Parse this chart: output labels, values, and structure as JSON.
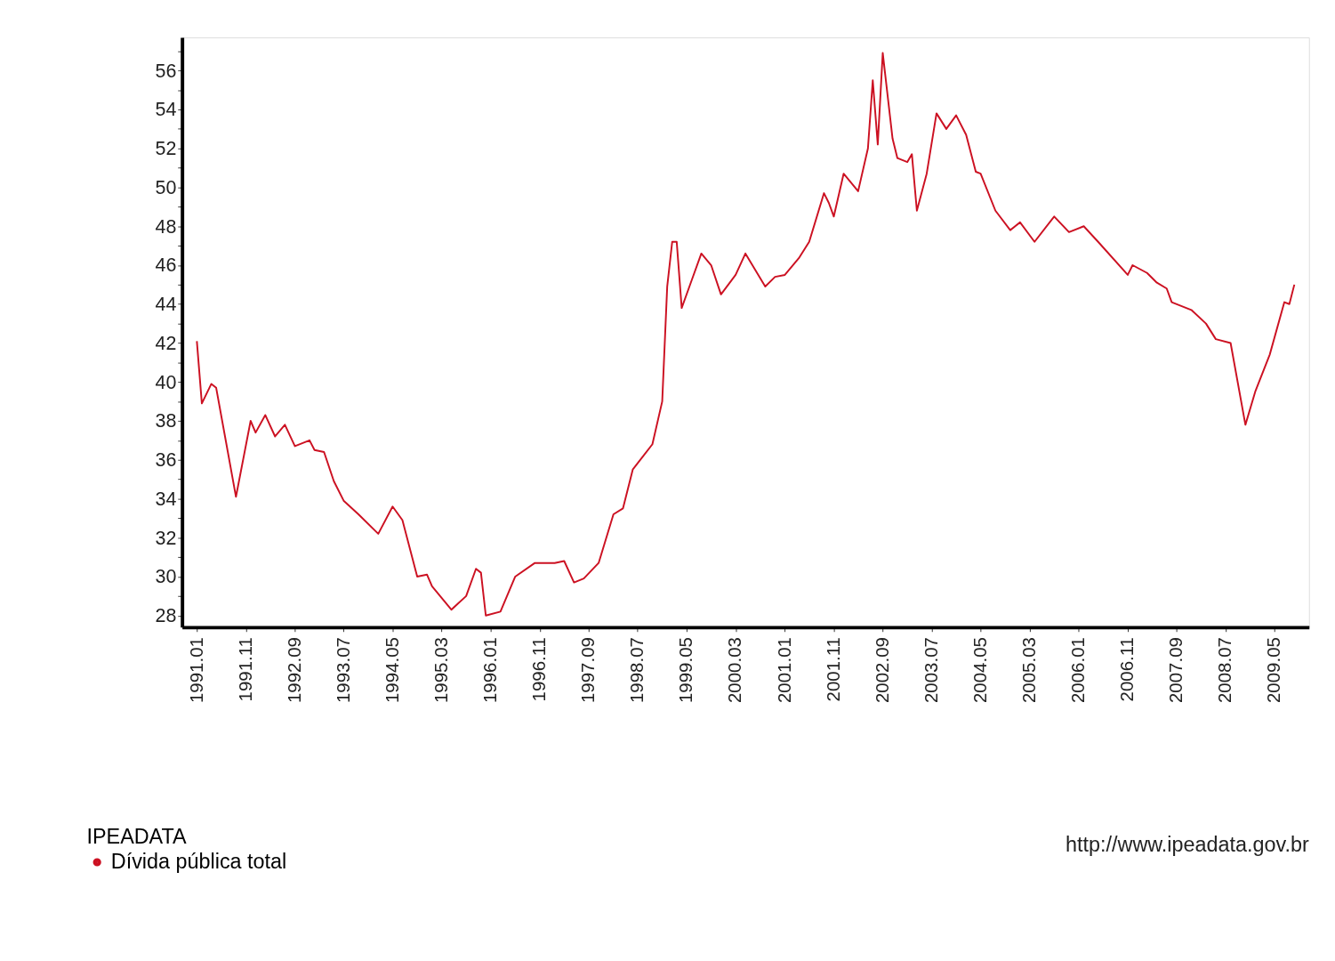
{
  "chart_data": {
    "type": "line",
    "legend_title": "IPEADATA",
    "legend": "bottom left",
    "grid": false,
    "marker": "none",
    "line_style": "solid",
    "annotations": [
      "http://www.ipeadata.gov.br"
    ],
    "x": [
      "1991-01",
      "1991-02",
      "1991-04",
      "1991-05",
      "1991-09",
      "1991-12",
      "1992-01",
      "1992-03",
      "1992-05",
      "1992-07",
      "1992-09",
      "1992-12",
      "1993-01",
      "1993-03",
      "1993-05",
      "1993-07",
      "1993-10",
      "1994-02",
      "1994-05",
      "1994-07",
      "1994-10",
      "1994-12",
      "1995-01",
      "1995-05",
      "1995-08",
      "1995-10",
      "1995-11",
      "1995-12",
      "1996-03",
      "1996-06",
      "1996-10",
      "1997-02",
      "1997-04",
      "1997-06",
      "1997-08",
      "1997-11",
      "1998-02",
      "1998-04",
      "1998-06",
      "1998-10",
      "1998-12",
      "1999-01",
      "1999-02",
      "1999-03",
      "1999-04",
      "1999-06",
      "1999-08",
      "1999-10",
      "1999-12",
      "2000-03",
      "2000-05",
      "2000-09",
      "2000-11",
      "2001-01",
      "2001-04",
      "2001-06",
      "2001-09",
      "2001-10",
      "2001-11",
      "2002-01",
      "2002-04",
      "2002-06",
      "2002-07",
      "2002-08",
      "2002-09",
      "2002-11",
      "2002-12",
      "2003-02",
      "2003-03",
      "2003-04",
      "2003-06",
      "2003-08",
      "2003-10",
      "2003-12",
      "2004-02",
      "2004-04",
      "2004-05",
      "2004-08",
      "2004-11",
      "2005-01",
      "2005-04",
      "2005-08",
      "2005-11",
      "2006-02",
      "2006-05",
      "2006-11",
      "2006-12",
      "2007-03",
      "2007-05",
      "2007-07",
      "2007-08",
      "2007-12",
      "2008-03",
      "2008-05",
      "2008-08",
      "2008-11",
      "2009-01",
      "2009-04",
      "2009-07",
      "2009-08",
      "2009-09"
    ],
    "series": [
      {
        "name": "Dívida pública total",
        "color": "#cc1122",
        "values": [
          42.1,
          38.9,
          39.9,
          39.7,
          34.1,
          38.0,
          37.4,
          38.3,
          37.2,
          37.8,
          36.7,
          37.0,
          36.5,
          36.4,
          34.9,
          33.9,
          33.2,
          32.2,
          33.6,
          32.9,
          30.0,
          30.1,
          29.5,
          28.3,
          29.0,
          30.4,
          30.2,
          28.0,
          28.2,
          30.0,
          30.7,
          30.7,
          30.8,
          29.7,
          29.9,
          30.7,
          33.2,
          33.5,
          35.5,
          36.8,
          39.0,
          44.9,
          47.2,
          47.2,
          43.8,
          45.2,
          46.6,
          46.0,
          44.5,
          45.5,
          46.6,
          44.9,
          45.4,
          45.5,
          46.4,
          47.2,
          49.7,
          49.2,
          48.5,
          50.7,
          49.8,
          52.0,
          55.5,
          52.2,
          56.9,
          52.5,
          51.5,
          51.3,
          51.7,
          48.8,
          50.7,
          53.8,
          53.0,
          53.7,
          52.7,
          50.8,
          50.7,
          48.8,
          47.8,
          48.2,
          47.2,
          48.5,
          47.7,
          48.0,
          47.2,
          45.5,
          46.0,
          45.6,
          45.1,
          44.8,
          44.1,
          43.7,
          43.0,
          42.2,
          42.0,
          37.8,
          39.5,
          41.4,
          44.1,
          44.0,
          45.0
        ]
      }
    ],
    "xlim": [
      "1990-10",
      "2009-12"
    ],
    "xticks": [
      {
        "value": "1991-01",
        "label": "1991.01"
      },
      {
        "value": "1991-11",
        "label": "1991.11"
      },
      {
        "value": "1992-09",
        "label": "1992.09"
      },
      {
        "value": "1993-07",
        "label": "1993.07"
      },
      {
        "value": "1994-05",
        "label": "1994.05"
      },
      {
        "value": "1995-03",
        "label": "1995.03"
      },
      {
        "value": "1996-01",
        "label": "1996.01"
      },
      {
        "value": "1996-11",
        "label": "1996.11"
      },
      {
        "value": "1997-09",
        "label": "1997.09"
      },
      {
        "value": "1998-07",
        "label": "1998.07"
      },
      {
        "value": "1999-05",
        "label": "1999.05"
      },
      {
        "value": "2000-03",
        "label": "2000.03"
      },
      {
        "value": "2001-01",
        "label": "2001.01"
      },
      {
        "value": "2001-11",
        "label": "2001.11"
      },
      {
        "value": "2002-09",
        "label": "2002.09"
      },
      {
        "value": "2003-07",
        "label": "2003.07"
      },
      {
        "value": "2004-05",
        "label": "2004.05"
      },
      {
        "value": "2005-03",
        "label": "2005.03"
      },
      {
        "value": "2006-01",
        "label": "2006.01"
      },
      {
        "value": "2006-11",
        "label": "2006.11"
      },
      {
        "value": "2007-09",
        "label": "2007.09"
      },
      {
        "value": "2008-07",
        "label": "2008.07"
      },
      {
        "value": "2009-05",
        "label": "2009.05"
      }
    ],
    "ylim": [
      27.4,
      57.7
    ],
    "yticks": [
      28,
      {
        "value": 29,
        "label": null
      },
      30,
      {
        "value": 31,
        "label": null
      },
      32,
      {
        "value": 33,
        "label": null
      },
      34,
      {
        "value": 35,
        "label": null
      },
      36,
      {
        "value": 37,
        "label": null
      },
      38,
      {
        "value": 39,
        "label": null
      },
      40,
      {
        "value": 41,
        "label": null
      },
      42,
      {
        "value": 43,
        "label": null
      },
      44,
      {
        "value": 45,
        "label": null
      },
      46,
      {
        "value": 47,
        "label": null
      },
      48,
      {
        "value": 49,
        "label": null
      },
      50,
      {
        "value": 51,
        "label": null
      },
      52,
      {
        "value": 53,
        "label": null
      },
      54,
      {
        "value": 55,
        "label": null
      },
      56,
      {
        "value": 57,
        "label": null
      }
    ]
  }
}
